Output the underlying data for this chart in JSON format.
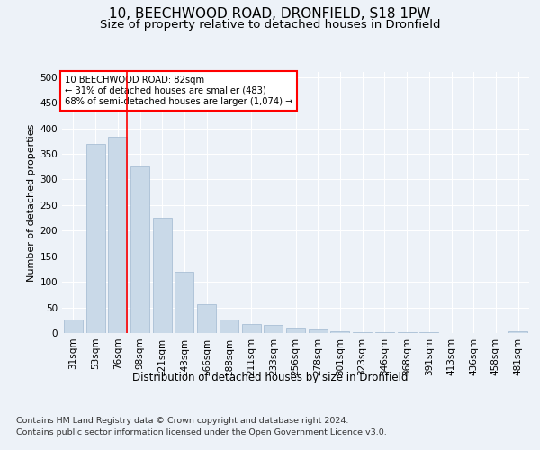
{
  "title_line1": "10, BEECHWOOD ROAD, DRONFIELD, S18 1PW",
  "title_line2": "Size of property relative to detached houses in Dronfield",
  "xlabel": "Distribution of detached houses by size in Dronfield",
  "ylabel": "Number of detached properties",
  "footer_line1": "Contains HM Land Registry data © Crown copyright and database right 2024.",
  "footer_line2": "Contains public sector information licensed under the Open Government Licence v3.0.",
  "bar_labels": [
    "31sqm",
    "53sqm",
    "76sqm",
    "98sqm",
    "121sqm",
    "143sqm",
    "166sqm",
    "188sqm",
    "211sqm",
    "233sqm",
    "256sqm",
    "278sqm",
    "301sqm",
    "323sqm",
    "346sqm",
    "368sqm",
    "391sqm",
    "413sqm",
    "436sqm",
    "458sqm",
    "481sqm"
  ],
  "bar_values": [
    27,
    370,
    383,
    325,
    225,
    120,
    57,
    27,
    18,
    15,
    10,
    7,
    4,
    2,
    1,
    1,
    1,
    0,
    0,
    0,
    4
  ],
  "bar_color": "#c9d9e8",
  "bar_edge_color": "#a0b8d0",
  "annotation_text": "10 BEECHWOOD ROAD: 82sqm\n← 31% of detached houses are smaller (483)\n68% of semi-detached houses are larger (1,074) →",
  "annotation_box_color": "white",
  "annotation_box_edge_color": "red",
  "vline_color": "red",
  "vline_x": 2.42,
  "ylim": [
    0,
    510
  ],
  "yticks": [
    0,
    50,
    100,
    150,
    200,
    250,
    300,
    350,
    400,
    450,
    500
  ],
  "background_color": "#edf2f8",
  "plot_background_color": "#edf2f8",
  "grid_color": "white",
  "title_fontsize": 11,
  "subtitle_fontsize": 9.5,
  "tick_fontsize": 7.5,
  "ylabel_fontsize": 8,
  "xlabel_fontsize": 8.5,
  "annotation_fontsize": 7.2,
  "footer_fontsize": 6.8
}
